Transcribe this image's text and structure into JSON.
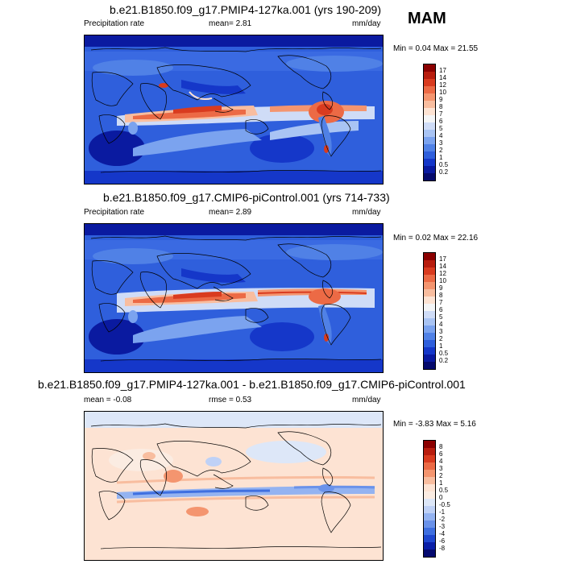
{
  "season": "MAM",
  "panels": [
    {
      "title": "b.e21.B1850.f09_g17.PMIP4-127ka.001 (yrs 190-209)",
      "left_label": "Precipitation rate",
      "stat1": "mean=   2.81",
      "stat2": "",
      "units": "mm/day",
      "minmax": "Min =   0.04 Max =  21.55"
    },
    {
      "title": "b.e21.B1850.f09_g17.CMIP6-piControl.001 (yrs 714-733)",
      "left_label": "Precipitation rate",
      "stat1": "mean=   2.89",
      "stat2": "",
      "units": "mm/day",
      "minmax": "Min =   0.02 Max =  22.16"
    },
    {
      "title": "b.e21.B1850.f09_g17.PMIP4-127ka.001 - b.e21.B1850.f09_g17.CMIP6-piControl.001",
      "left_label": "",
      "stat1": "mean =  -0.08",
      "stat2": "rmse =   0.53",
      "units": "mm/day",
      "minmax": "Min =  -3.83 Max =   5.16"
    }
  ],
  "chart_data": [
    {
      "type": "heatmap",
      "title": "b.e21.B1850.f09_g17.PMIP4-127ka.001 (yrs 190-209)",
      "variable": "Precipitation rate",
      "units": "mm/day",
      "mean": 2.81,
      "min": 0.04,
      "max": 21.55,
      "colorbar_levels": [
        "17",
        "14",
        "12",
        "10",
        "9",
        "8",
        "7",
        "6",
        "5",
        "4",
        "3",
        "2",
        "1",
        "0.5",
        "0.2"
      ],
      "colorbar_colors": [
        "#8b0000",
        "#b81d0e",
        "#d93b1f",
        "#ec6a45",
        "#f4956f",
        "#f8bd9f",
        "#fde3d3",
        "#f4f5f6",
        "#cfdcf7",
        "#a9c4f4",
        "#7ba3ef",
        "#5081e6",
        "#2f5fdc",
        "#1537c9",
        "#0a1aa0",
        "#050a6c"
      ]
    },
    {
      "type": "heatmap",
      "title": "b.e21.B1850.f09_g17.CMIP6-piControl.001 (yrs 714-733)",
      "variable": "Precipitation rate",
      "units": "mm/day",
      "mean": 2.89,
      "min": 0.02,
      "max": 22.16,
      "colorbar_levels": [
        "17",
        "14",
        "12",
        "10",
        "9",
        "8",
        "7",
        "6",
        "5",
        "4",
        "3",
        "2",
        "1",
        "0.5",
        "0.2"
      ],
      "colorbar_colors": [
        "#8b0000",
        "#b81d0e",
        "#d93b1f",
        "#ec6a45",
        "#f4956f",
        "#f8bd9f",
        "#fde3d3",
        "#f4f5f6",
        "#cfdcf7",
        "#a9c4f4",
        "#7ba3ef",
        "#5081e6",
        "#2f5fdc",
        "#1537c9",
        "#0a1aa0",
        "#050a6c"
      ]
    },
    {
      "type": "heatmap",
      "title": "b.e21.B1850.f09_g17.PMIP4-127ka.001 - b.e21.B1850.f09_g17.CMIP6-piControl.001",
      "units": "mm/day",
      "mean": -0.08,
      "rmse": 0.53,
      "min": -3.83,
      "max": 5.16,
      "colorbar_levels": [
        "8",
        "6",
        "4",
        "3",
        "2",
        "1",
        "0.5",
        "0",
        "-0.5",
        "-1",
        "-2",
        "-3",
        "-4",
        "-6",
        "-8"
      ],
      "colorbar_colors": [
        "#8b0000",
        "#b81d0e",
        "#d93b1f",
        "#ec6a45",
        "#f4956f",
        "#f8bd9f",
        "#fde3d3",
        "#fbece2",
        "#dde7f8",
        "#bfd1f6",
        "#94b3f1",
        "#6a92ea",
        "#3f6fe0",
        "#1f47cf",
        "#0a1fa8",
        "#050a70"
      ]
    }
  ]
}
